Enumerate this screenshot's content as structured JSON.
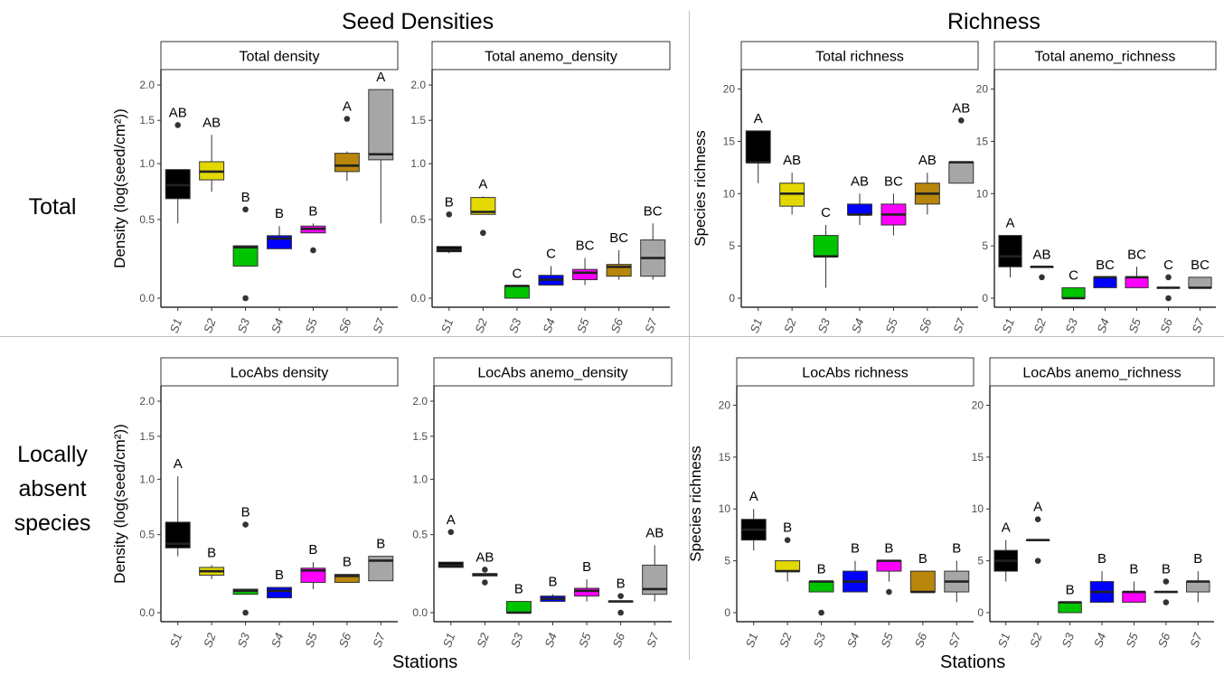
{
  "figure": {
    "section_titles": {
      "left": "Seed Densities",
      "right": "Richness"
    },
    "row_labels": {
      "top": "Total",
      "bottom": "Locally\nabsent\nspecies"
    },
    "x_titles": {
      "left": "Stations",
      "right": "Stations"
    }
  },
  "colors": {
    "S1": "#000000",
    "S2": "#e3d800",
    "S3": "#00c400",
    "S4": "#0000ff",
    "S5": "#ff00ff",
    "S6": "#b8860b",
    "S7": "#a6a6a6"
  },
  "chart_data": [
    {
      "type": "boxplot",
      "title": "Total density",
      "ylabel": "Density (log(seed/cm²))",
      "xlabel": "",
      "scale": "log1p",
      "ylim": [
        0,
        2.1
      ],
      "yticks": [
        "0.0",
        "0.5",
        "1.0",
        "1.5",
        "2.0"
      ],
      "ytick_values": [
        0,
        0.5,
        1,
        1.5,
        2
      ],
      "categories": [
        "S1",
        "S2",
        "S3",
        "S4",
        "S5",
        "S6",
        "S7"
      ],
      "boxes": [
        {
          "q1": 0.67,
          "med": 0.79,
          "q3": 0.94,
          "lo": 0.47,
          "hi": 0.94,
          "out": [
            1.44
          ]
        },
        {
          "q1": 0.84,
          "med": 0.92,
          "q3": 1.02,
          "lo": 0.73,
          "hi": 1.32,
          "out": []
        },
        {
          "q1": 0.18,
          "med": 0.3,
          "q3": 0.31,
          "lo": 0.18,
          "hi": 0.31,
          "out": [
            0.58,
            0.0
          ]
        },
        {
          "q1": 0.29,
          "med": 0.36,
          "q3": 0.38,
          "lo": 0.29,
          "hi": 0.45,
          "out": []
        },
        {
          "q1": 0.4,
          "med": 0.43,
          "q3": 0.45,
          "lo": 0.4,
          "hi": 0.47,
          "out": [
            0.28
          ]
        },
        {
          "q1": 0.92,
          "med": 0.98,
          "q3": 1.11,
          "lo": 0.83,
          "hi": 1.13,
          "out": [
            1.52
          ]
        },
        {
          "q1": 1.04,
          "med": 1.1,
          "q3": 1.93,
          "lo": 0.47,
          "hi": 1.93,
          "out": []
        }
      ],
      "letters": [
        "AB",
        "AB",
        "B",
        "B",
        "B",
        "A",
        "A"
      ]
    },
    {
      "type": "boxplot",
      "title": "Total anemo_density",
      "ylabel": "",
      "xlabel": "",
      "scale": "log1p",
      "ylim": [
        0,
        2.1
      ],
      "yticks": [
        "0.0",
        "0.5",
        "1.0",
        "1.5",
        "2.0"
      ],
      "ytick_values": [
        0,
        0.5,
        1,
        1.5,
        2
      ],
      "categories": [
        "S1",
        "S2",
        "S3",
        "S4",
        "S5",
        "S6",
        "S7"
      ],
      "boxes": [
        {
          "q1": 0.27,
          "med": 0.285,
          "q3": 0.305,
          "lo": 0.26,
          "hi": 0.305,
          "out": [
            0.54
          ]
        },
        {
          "q1": 0.54,
          "med": 0.56,
          "q3": 0.68,
          "lo": 0.54,
          "hi": 0.69,
          "out": [
            0.4
          ]
        },
        {
          "q1": 0.0,
          "med": 0.065,
          "q3": 0.065,
          "lo": 0.0,
          "hi": 0.065,
          "out": []
        },
        {
          "q1": 0.07,
          "med": 0.1,
          "q3": 0.125,
          "lo": 0.07,
          "hi": 0.18,
          "out": []
        },
        {
          "q1": 0.1,
          "med": 0.14,
          "q3": 0.16,
          "lo": 0.07,
          "hi": 0.23,
          "out": []
        },
        {
          "q1": 0.12,
          "med": 0.175,
          "q3": 0.19,
          "lo": 0.1,
          "hi": 0.28,
          "out": []
        },
        {
          "q1": 0.12,
          "med": 0.23,
          "q3": 0.35,
          "lo": 0.1,
          "hi": 0.47,
          "out": []
        }
      ],
      "letters": [
        "B",
        "A",
        "C",
        "C",
        "BC",
        "BC",
        "BC"
      ]
    },
    {
      "type": "boxplot",
      "title": "Total richness",
      "ylabel": "Species richness",
      "xlabel": "",
      "scale": "linear",
      "ylim": [
        0,
        21
      ],
      "yticks": [
        "0",
        "5",
        "10",
        "15",
        "20"
      ],
      "ytick_values": [
        0,
        5,
        10,
        15,
        20
      ],
      "categories": [
        "S1",
        "S2",
        "S3",
        "S4",
        "S5",
        "S6",
        "S7"
      ],
      "boxes": [
        {
          "q1": 13,
          "med": 13,
          "q3": 16,
          "lo": 11,
          "hi": 16,
          "out": []
        },
        {
          "q1": 8.8,
          "med": 10,
          "q3": 11,
          "lo": 8,
          "hi": 12,
          "out": []
        },
        {
          "q1": 4,
          "med": 4,
          "q3": 6,
          "lo": 1,
          "hi": 7,
          "out": []
        },
        {
          "q1": 8,
          "med": 8,
          "q3": 9,
          "lo": 7,
          "hi": 10,
          "out": []
        },
        {
          "q1": 7,
          "med": 8,
          "q3": 9,
          "lo": 6,
          "hi": 10,
          "out": []
        },
        {
          "q1": 9,
          "med": 10,
          "q3": 11,
          "lo": 8,
          "hi": 12,
          "out": []
        },
        {
          "q1": 11,
          "med": 13,
          "q3": 13,
          "lo": 11,
          "hi": 13,
          "out": [
            17
          ]
        }
      ],
      "letters": [
        "A",
        "AB",
        "C",
        "AB",
        "BC",
        "AB",
        "AB"
      ]
    },
    {
      "type": "boxplot",
      "title": "Total anemo_richness",
      "ylabel": "",
      "xlabel": "",
      "scale": "linear",
      "ylim": [
        0,
        21
      ],
      "yticks": [
        "0",
        "5",
        "10",
        "15",
        "20"
      ],
      "ytick_values": [
        0,
        5,
        10,
        15,
        20
      ],
      "categories": [
        "S1",
        "S2",
        "S3",
        "S4",
        "S5",
        "S6",
        "S7"
      ],
      "boxes": [
        {
          "q1": 3,
          "med": 4,
          "q3": 6,
          "lo": 2,
          "hi": 6,
          "out": []
        },
        {
          "q1": 3,
          "med": 3,
          "q3": 3,
          "lo": 3,
          "hi": 3,
          "out": [
            2
          ]
        },
        {
          "q1": 0,
          "med": 0,
          "q3": 1,
          "lo": 0,
          "hi": 1,
          "out": []
        },
        {
          "q1": 1,
          "med": 2,
          "q3": 2,
          "lo": 1,
          "hi": 2,
          "out": []
        },
        {
          "q1": 1,
          "med": 2,
          "q3": 2,
          "lo": 1,
          "hi": 3,
          "out": []
        },
        {
          "q1": 1,
          "med": 1,
          "q3": 1,
          "lo": 1,
          "hi": 1,
          "out": [
            2,
            0
          ]
        },
        {
          "q1": 1,
          "med": 1,
          "q3": 2,
          "lo": 1,
          "hi": 2,
          "out": []
        }
      ],
      "letters": [
        "A",
        "AB",
        "C",
        "BC",
        "BC",
        "C",
        "BC"
      ]
    },
    {
      "type": "boxplot",
      "title": "LocAbs density",
      "ylabel": "Density (log(seed/cm²))",
      "xlabel": "",
      "scale": "log1p",
      "ylim": [
        0,
        2.1
      ],
      "yticks": [
        "0.0",
        "0.5",
        "1.0",
        "1.5",
        "2.0"
      ],
      "ytick_values": [
        0,
        0.5,
        1,
        1.5,
        2
      ],
      "categories": [
        "S1",
        "S2",
        "S3",
        "S4",
        "S5",
        "S6",
        "S7"
      ],
      "boxes": [
        {
          "q1": 0.4,
          "med": 0.43,
          "q3": 0.6,
          "lo": 0.34,
          "hi": 1.03,
          "out": []
        },
        {
          "q1": 0.215,
          "med": 0.24,
          "q3": 0.265,
          "lo": 0.19,
          "hi": 0.28,
          "out": []
        },
        {
          "q1": 0.1,
          "med": 0.12,
          "q3": 0.13,
          "lo": 0.1,
          "hi": 0.13,
          "out": [
            0.58,
            0.0
          ]
        },
        {
          "q1": 0.08,
          "med": 0.12,
          "q3": 0.14,
          "lo": 0.08,
          "hi": 0.14,
          "out": []
        },
        {
          "q1": 0.17,
          "med": 0.245,
          "q3": 0.26,
          "lo": 0.13,
          "hi": 0.3,
          "out": []
        },
        {
          "q1": 0.17,
          "med": 0.21,
          "q3": 0.22,
          "lo": 0.17,
          "hi": 0.22,
          "out": []
        },
        {
          "q1": 0.18,
          "med": 0.31,
          "q3": 0.34,
          "lo": 0.18,
          "hi": 0.34,
          "out": []
        }
      ],
      "letters": [
        "A",
        "B",
        "B",
        "B",
        "B",
        "B",
        "B"
      ]
    },
    {
      "type": "boxplot",
      "title": "LocAbs anemo_density",
      "ylabel": "",
      "xlabel": "",
      "scale": "log1p",
      "ylim": [
        0,
        2.1
      ],
      "yticks": [
        "0.0",
        "0.5",
        "1.0",
        "1.5",
        "2.0"
      ],
      "ytick_values": [
        0,
        0.5,
        1,
        1.5,
        2
      ],
      "categories": [
        "S1",
        "S2",
        "S3",
        "S4",
        "S5",
        "S6",
        "S7"
      ],
      "boxes": [
        {
          "q1": 0.265,
          "med": 0.28,
          "q3": 0.3,
          "lo": 0.265,
          "hi": 0.3,
          "out": [
            0.52
          ]
        },
        {
          "q1": 0.21,
          "med": 0.22,
          "q3": 0.225,
          "lo": 0.21,
          "hi": 0.225,
          "out": [
            0.25,
            0.17
          ]
        },
        {
          "q1": 0.0,
          "med": 0.0,
          "q3": 0.06,
          "lo": 0.0,
          "hi": 0.06,
          "out": []
        },
        {
          "q1": 0.06,
          "med": 0.075,
          "q3": 0.09,
          "lo": 0.06,
          "hi": 0.1,
          "out": []
        },
        {
          "q1": 0.09,
          "med": 0.12,
          "q3": 0.135,
          "lo": 0.06,
          "hi": 0.19,
          "out": []
        },
        {
          "q1": 0.06,
          "med": 0.06,
          "q3": 0.06,
          "lo": 0.06,
          "hi": 0.06,
          "out": [
            0.09,
            0.0
          ]
        },
        {
          "q1": 0.1,
          "med": 0.13,
          "q3": 0.28,
          "lo": 0.06,
          "hi": 0.42,
          "out": []
        }
      ],
      "letters": [
        "A",
        "AB",
        "B",
        "B",
        "B",
        "B",
        "AB"
      ]
    },
    {
      "type": "boxplot",
      "title": "LocAbs richness",
      "ylabel": "Species richness",
      "xlabel": "",
      "scale": "linear",
      "ylim": [
        0,
        21
      ],
      "yticks": [
        "0",
        "5",
        "10",
        "15",
        "20"
      ],
      "ytick_values": [
        0,
        5,
        10,
        15,
        20
      ],
      "categories": [
        "S1",
        "S2",
        "S3",
        "S4",
        "S5",
        "S6",
        "S7"
      ],
      "boxes": [
        {
          "q1": 7,
          "med": 8,
          "q3": 9,
          "lo": 6,
          "hi": 10,
          "out": []
        },
        {
          "q1": 4,
          "med": 4,
          "q3": 5,
          "lo": 3,
          "hi": 5,
          "out": [
            7
          ]
        },
        {
          "q1": 2,
          "med": 3,
          "q3": 3,
          "lo": 2,
          "hi": 3,
          "out": [
            0
          ]
        },
        {
          "q1": 2,
          "med": 3,
          "q3": 4,
          "lo": 2,
          "hi": 5,
          "out": []
        },
        {
          "q1": 4,
          "med": 5,
          "q3": 5,
          "lo": 3,
          "hi": 5,
          "out": [
            2
          ]
        },
        {
          "q1": 2,
          "med": 2,
          "q3": 4,
          "lo": 2,
          "hi": 4,
          "out": []
        },
        {
          "q1": 2,
          "med": 3,
          "q3": 4,
          "lo": 1,
          "hi": 5,
          "out": []
        }
      ],
      "letters": [
        "A",
        "B",
        "B",
        "B",
        "B",
        "B",
        "B"
      ]
    },
    {
      "type": "boxplot",
      "title": "LocAbs anemo_richness",
      "ylabel": "",
      "xlabel": "",
      "scale": "linear",
      "ylim": [
        0,
        21
      ],
      "yticks": [
        "0",
        "5",
        "10",
        "15",
        "20"
      ],
      "ytick_values": [
        0,
        5,
        10,
        15,
        20
      ],
      "categories": [
        "S1",
        "S2",
        "S3",
        "S4",
        "S5",
        "S6",
        "S7"
      ],
      "boxes": [
        {
          "q1": 4,
          "med": 5,
          "q3": 6,
          "lo": 3,
          "hi": 7,
          "out": []
        },
        {
          "q1": 7,
          "med": 7,
          "q3": 7,
          "lo": 7,
          "hi": 7,
          "out": [
            9,
            5
          ]
        },
        {
          "q1": 0,
          "med": 1,
          "q3": 1,
          "lo": 0,
          "hi": 1,
          "out": []
        },
        {
          "q1": 1,
          "med": 2,
          "q3": 3,
          "lo": 1,
          "hi": 4,
          "out": []
        },
        {
          "q1": 1,
          "med": 2,
          "q3": 2,
          "lo": 1,
          "hi": 3,
          "out": []
        },
        {
          "q1": 2,
          "med": 2,
          "q3": 2,
          "lo": 2,
          "hi": 2,
          "out": [
            3,
            1
          ]
        },
        {
          "q1": 2,
          "med": 3,
          "q3": 3,
          "lo": 1,
          "hi": 4,
          "out": []
        }
      ],
      "letters": [
        "A",
        "A",
        "B",
        "B",
        "B",
        "B",
        "B"
      ]
    }
  ]
}
